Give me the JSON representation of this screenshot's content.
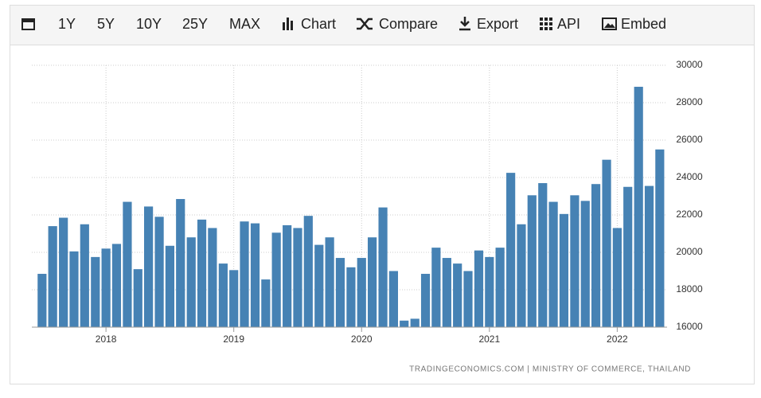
{
  "toolbar": [
    "1Y",
    "5Y",
    "10Y",
    "25Y",
    "MAX",
    "Chart",
    "Compare",
    "Export",
    "API",
    "Embed"
  ],
  "chart_data": {
    "type": "bar",
    "source": "TRADINGECONOMICS.COM | MINISTRY OF COMMERCE, THAILAND",
    "color": "#4682b4",
    "grid": true,
    "x": [
      2017.5,
      2017.583,
      2017.667,
      2017.75,
      2017.833,
      2017.917,
      2018,
      2018.083,
      2018.167,
      2018.25,
      2018.333,
      2018.417,
      2018.5,
      2018.583,
      2018.667,
      2018.75,
      2018.833,
      2018.917,
      2019,
      2019.083,
      2019.167,
      2019.25,
      2019.333,
      2019.417,
      2019.5,
      2019.583,
      2019.667,
      2019.75,
      2019.833,
      2019.917,
      2020,
      2020.083,
      2020.167,
      2020.25,
      2020.333,
      2020.417,
      2020.5,
      2020.583,
      2020.667,
      2020.75,
      2020.833,
      2020.917,
      2021,
      2021.083,
      2021.167,
      2021.25,
      2021.333,
      2021.417,
      2021.5,
      2021.583,
      2021.667,
      2021.75,
      2021.833,
      2021.917,
      2022,
      2022.083,
      2022.167,
      2022.25,
      2022.333
    ],
    "values": [
      18850,
      21400,
      21850,
      20050,
      21500,
      19750,
      20200,
      20450,
      22700,
      19100,
      22450,
      21900,
      20350,
      22850,
      20800,
      21750,
      21300,
      19400,
      19050,
      21650,
      21550,
      18550,
      21050,
      21450,
      21300,
      21950,
      20400,
      20800,
      19700,
      19200,
      19700,
      20800,
      22400,
      19000,
      16350,
      16450,
      18850,
      20250,
      19700,
      19400,
      19000,
      20100,
      19750,
      20250,
      24250,
      21500,
      23050,
      23700,
      22700,
      22050,
      23050,
      22750,
      23650,
      24950,
      21300,
      23500,
      28850,
      23550,
      25500
    ],
    "xlim": [
      2017.42,
      2022.39
    ],
    "xticks": [
      2018,
      2019,
      2020,
      2021,
      2022
    ],
    "ylim": [
      16000,
      30000
    ],
    "yticks": [
      16000,
      18000,
      20000,
      22000,
      24000,
      26000,
      28000,
      30000
    ]
  }
}
